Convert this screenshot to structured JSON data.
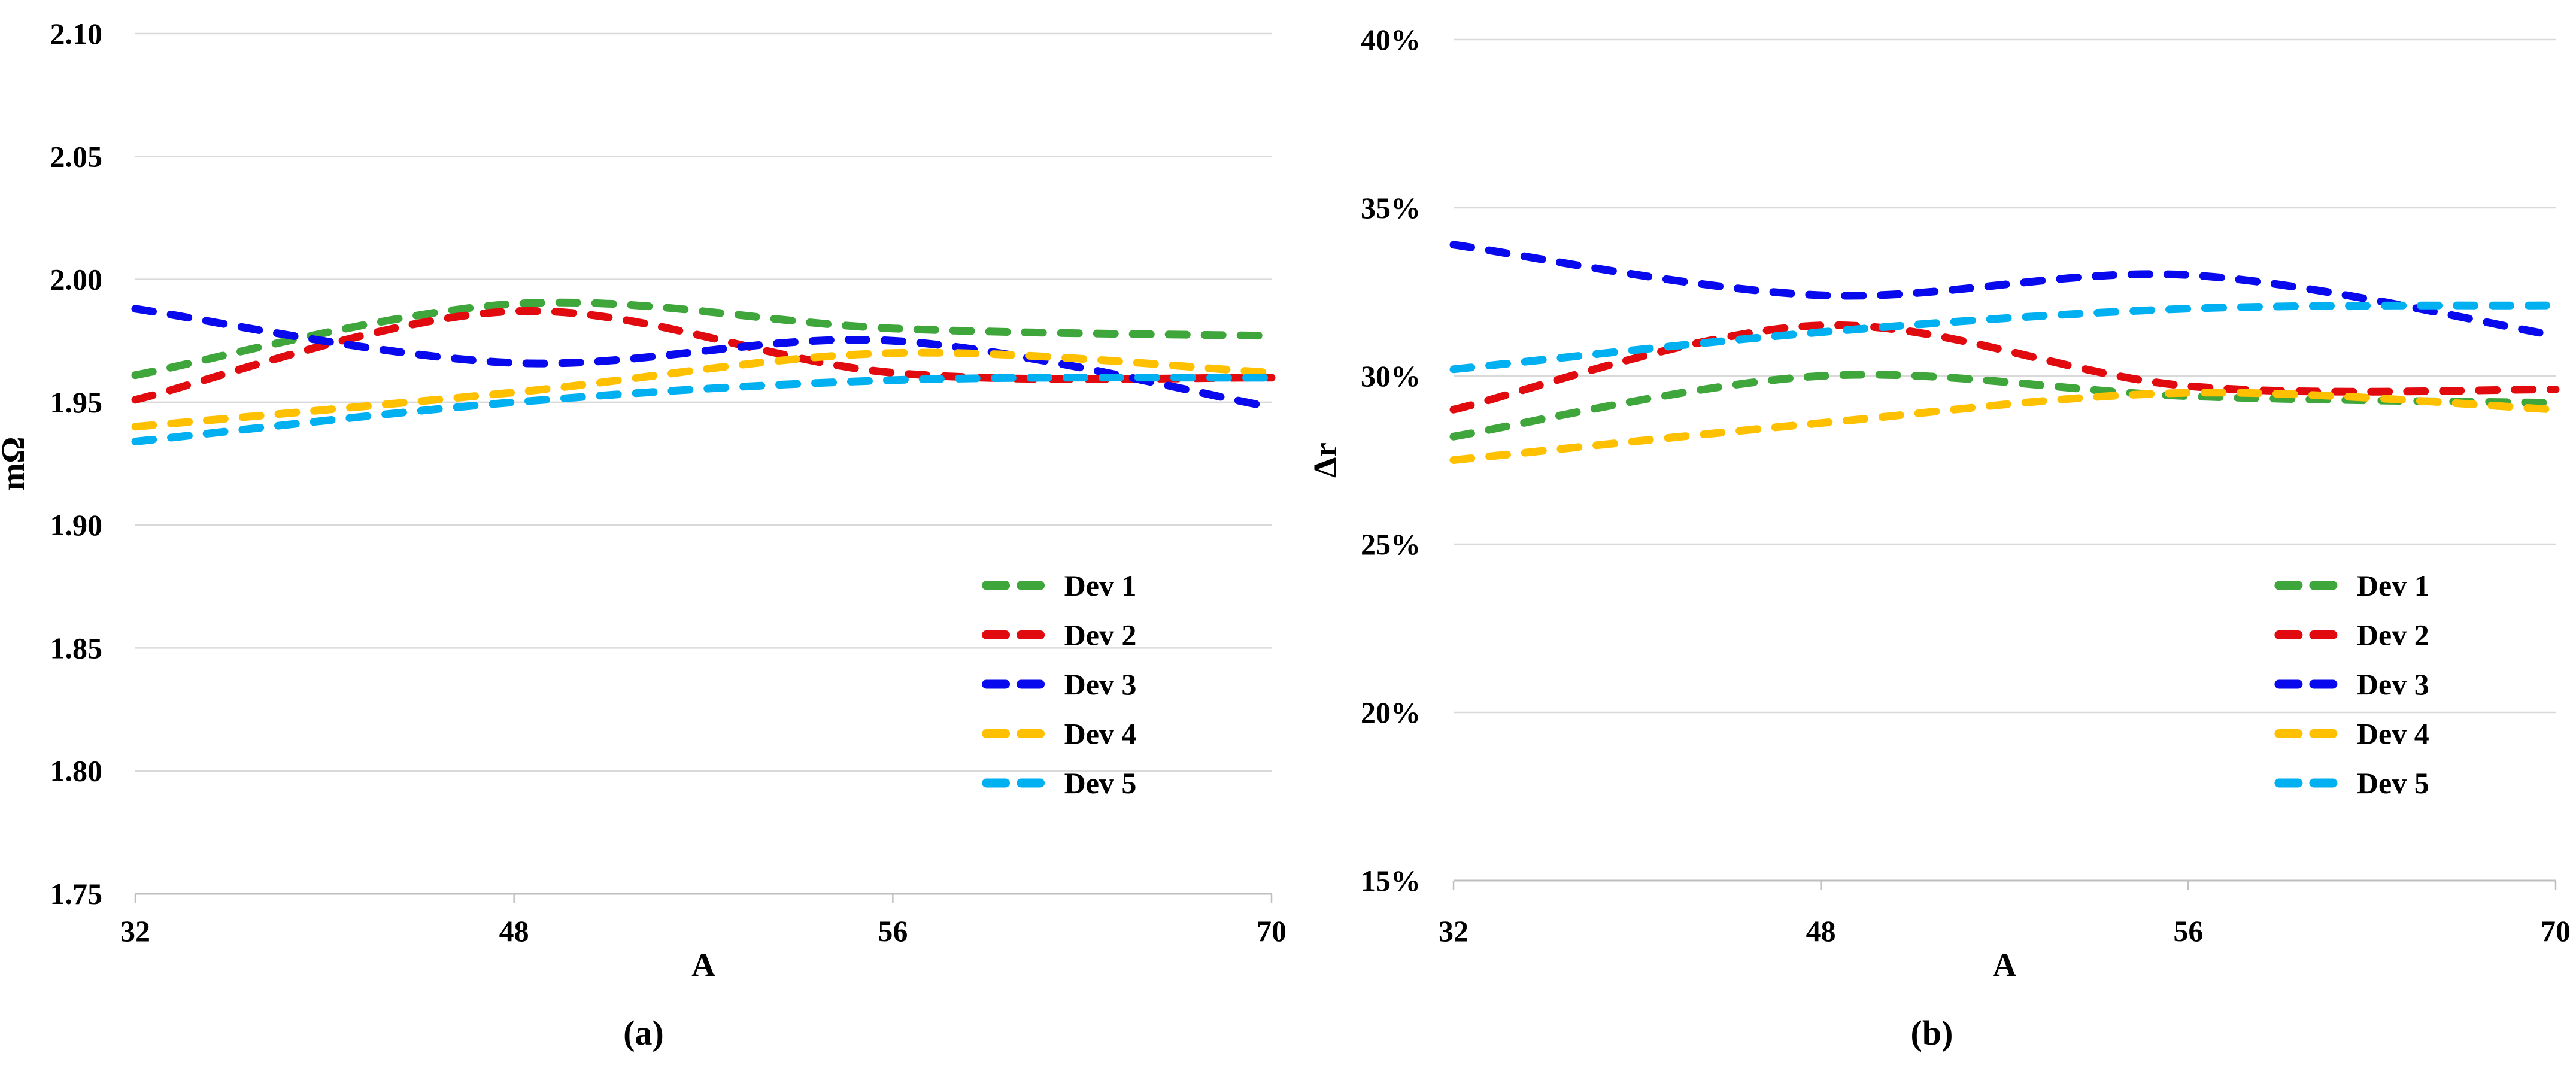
{
  "figure": {
    "background": "#FFFFFF",
    "grid_color": "#D9D9D9",
    "axis_color": "#BFBFBF",
    "text_color": "#000000",
    "legend_labels": [
      "Dev 1",
      "Dev 2",
      "Dev 3",
      "Dev 4",
      "Dev 5"
    ]
  },
  "chart_data": [
    {
      "id": "a",
      "type": "line",
      "title": "",
      "caption": "(a)",
      "xlabel": "A",
      "ylabel": "mΩ",
      "x_categories": [
        32,
        48,
        56,
        70
      ],
      "x_axis_type": "category-equally-spaced",
      "ylim": [
        1.75,
        2.1
      ],
      "ytick_step": 0.05,
      "ytick_labels": [
        "2.10",
        "2.05",
        "2.00",
        "1.95",
        "1.90",
        "1.85",
        "1.80",
        "1.75"
      ],
      "ytick_format": "fixed2",
      "grid": "horizontal",
      "line_style": "dashed-smooth",
      "legend_position": "inside-right",
      "series": [
        {
          "name": "Dev 1",
          "color": "#3EA63B",
          "values": [
            1.961,
            1.99,
            1.98,
            1.977
          ]
        },
        {
          "name": "Dev 2",
          "color": "#E10A0E",
          "values": [
            1.951,
            1.987,
            1.962,
            1.96
          ]
        },
        {
          "name": "Dev 3",
          "color": "#0909EE",
          "values": [
            1.988,
            1.966,
            1.975,
            1.948
          ]
        },
        {
          "name": "Dev 4",
          "color": "#FFC000",
          "values": [
            1.94,
            1.954,
            1.97,
            1.962
          ]
        },
        {
          "name": "Dev 5",
          "color": "#00B0F0",
          "values": [
            1.934,
            1.95,
            1.959,
            1.96
          ]
        }
      ]
    },
    {
      "id": "b",
      "type": "line",
      "title": "",
      "caption": "(b)",
      "xlabel": "A",
      "ylabel": "Δr",
      "x_categories": [
        32,
        48,
        56,
        70
      ],
      "x_axis_type": "category-equally-spaced",
      "ylim": [
        15,
        40
      ],
      "ytick_step": 5,
      "ytick_labels": [
        "40%",
        "35%",
        "30%",
        "25%",
        "20%",
        "15%"
      ],
      "ytick_format": "percent",
      "grid": "horizontal",
      "line_style": "dashed-smooth",
      "legend_position": "inside-right",
      "series": [
        {
          "name": "Dev 1",
          "color": "#3EA63B",
          "values": [
            28.2,
            30.0,
            29.4,
            29.2
          ]
        },
        {
          "name": "Dev 2",
          "color": "#E10A0E",
          "values": [
            29.0,
            31.5,
            29.7,
            29.6
          ]
        },
        {
          "name": "Dev 3",
          "color": "#0909EE",
          "values": [
            33.9,
            32.4,
            33.0,
            31.2
          ]
        },
        {
          "name": "Dev 4",
          "color": "#FFC000",
          "values": [
            27.5,
            28.6,
            29.5,
            29.0
          ]
        },
        {
          "name": "Dev 5",
          "color": "#00B0F0",
          "values": [
            30.2,
            31.3,
            32.0,
            32.1
          ]
        }
      ]
    }
  ]
}
